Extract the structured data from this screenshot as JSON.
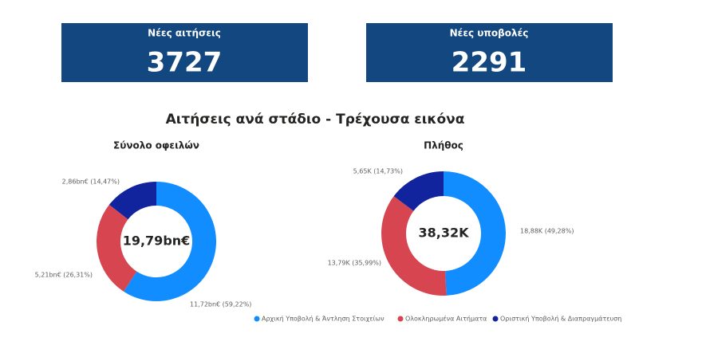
{
  "kpis": [
    {
      "label": "Νέες αιτήσεις",
      "value": 3727
    },
    {
      "label": "Νέες υποβολές",
      "value": 2291
    }
  ],
  "title": "Αιτήσεις ανά στάδιο - Τρέχουσα εικόνα",
  "legend": {
    "items": [
      "Αρχική Υποβολή & Άντληση Στοιχείων",
      "Ολοκληρωμένα Αιτήματα",
      "Οριστική Υποβολή & Διαπραγμάτευση"
    ],
    "colors": [
      "#118dff",
      "#d64550",
      "#12239e"
    ]
  },
  "chart_data": [
    {
      "type": "donut",
      "title": "Σύνολο οφειλών",
      "center_label": "19,79bn€",
      "values": [
        11.72,
        5.21,
        2.86
      ],
      "value_labels": [
        "11,72bn€ (59,22%)",
        "5,21bn€ (26,31%)",
        "2,86bn€ (14,47%)"
      ]
    },
    {
      "type": "donut",
      "title": "Πλήθος",
      "center_label": "38,32K",
      "values": [
        18.88,
        13.79,
        5.65
      ],
      "value_labels": [
        "18,88K (49,28%)",
        "13,79K (35,99%)",
        "5,65K (14,73%)"
      ]
    }
  ]
}
